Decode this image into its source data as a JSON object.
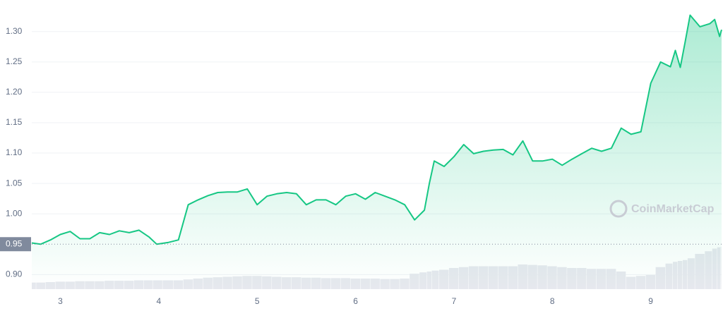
{
  "chart_data": {
    "type": "line",
    "x": [
      2.71,
      2.8,
      2.9,
      3.0,
      3.1,
      3.2,
      3.3,
      3.4,
      3.5,
      3.6,
      3.7,
      3.8,
      3.9,
      3.98,
      4.1,
      4.2,
      4.3,
      4.4,
      4.5,
      4.6,
      4.7,
      4.8,
      4.9,
      5.0,
      5.1,
      5.2,
      5.3,
      5.4,
      5.5,
      5.6,
      5.7,
      5.8,
      5.9,
      6.0,
      6.1,
      6.2,
      6.3,
      6.4,
      6.5,
      6.6,
      6.7,
      6.75,
      6.8,
      6.9,
      7.0,
      7.1,
      7.2,
      7.3,
      7.4,
      7.5,
      7.6,
      7.7,
      7.8,
      7.9,
      8.0,
      8.1,
      8.2,
      8.3,
      8.4,
      8.5,
      8.6,
      8.7,
      8.8,
      8.9,
      9.0,
      9.1,
      9.2,
      9.25,
      9.3,
      9.35,
      9.4,
      9.5,
      9.6,
      9.65,
      9.7,
      9.72
    ],
    "series": [
      {
        "color": "#16c784",
        "values": [
          0.952,
          0.95,
          0.957,
          0.966,
          0.971,
          0.959,
          0.959,
          0.969,
          0.966,
          0.972,
          0.969,
          0.973,
          0.962,
          0.95,
          0.953,
          0.957,
          1.015,
          1.023,
          1.03,
          1.035,
          1.036,
          1.036,
          1.041,
          1.015,
          1.029,
          1.033,
          1.035,
          1.033,
          1.015,
          1.023,
          1.023,
          1.015,
          1.029,
          1.033,
          1.024,
          1.035,
          1.029,
          1.023,
          1.015,
          0.99,
          1.006,
          1.05,
          1.087,
          1.078,
          1.094,
          1.114,
          1.099,
          1.103,
          1.105,
          1.106,
          1.097,
          1.12,
          1.087,
          1.087,
          1.09,
          1.08,
          1.09,
          1.099,
          1.108,
          1.103,
          1.108,
          1.141,
          1.131,
          1.135,
          1.215,
          1.25,
          1.242,
          1.269,
          1.241,
          1.283,
          1.327,
          1.308,
          1.313,
          1.32,
          1.292,
          1.303
        ]
      }
    ],
    "volume": {
      "color": "#e6e8ee",
      "values": [
        15,
        15,
        16,
        17,
        17,
        18,
        18,
        18,
        19,
        19,
        19,
        20,
        20,
        20,
        20,
        20,
        22,
        24,
        26,
        27,
        28,
        29,
        30,
        30,
        29,
        28,
        27,
        27,
        26,
        26,
        25,
        25,
        25,
        24,
        24,
        24,
        23,
        23,
        24,
        35,
        38,
        40,
        42,
        44,
        48,
        50,
        52,
        52,
        52,
        52,
        52,
        56,
        55,
        54,
        52,
        50,
        48,
        48,
        46,
        46,
        46,
        40,
        28,
        30,
        32,
        50,
        58,
        62,
        64,
        66,
        70,
        80,
        86,
        92,
        95,
        96
      ]
    },
    "xlim": [
      2.71,
      9.72
    ],
    "xticks": [
      3,
      4,
      5,
      6,
      7,
      8,
      9
    ],
    "ylim": [
      0.876,
      1.352
    ],
    "yticks": [
      {
        "value": 0.9,
        "label": "0.90"
      },
      {
        "value": 1.0,
        "label": "1.00"
      },
      {
        "value": 1.05,
        "label": "1.05"
      },
      {
        "value": 1.1,
        "label": "1.10"
      },
      {
        "value": 1.15,
        "label": "1.15"
      },
      {
        "value": 1.2,
        "label": "1.20"
      },
      {
        "value": 1.25,
        "label": "1.25"
      },
      {
        "value": 1.3,
        "label": "1.30"
      }
    ],
    "reference": {
      "value": 0.95,
      "label": "0.95"
    },
    "grid": true,
    "watermark": "CoinMarketCap"
  }
}
